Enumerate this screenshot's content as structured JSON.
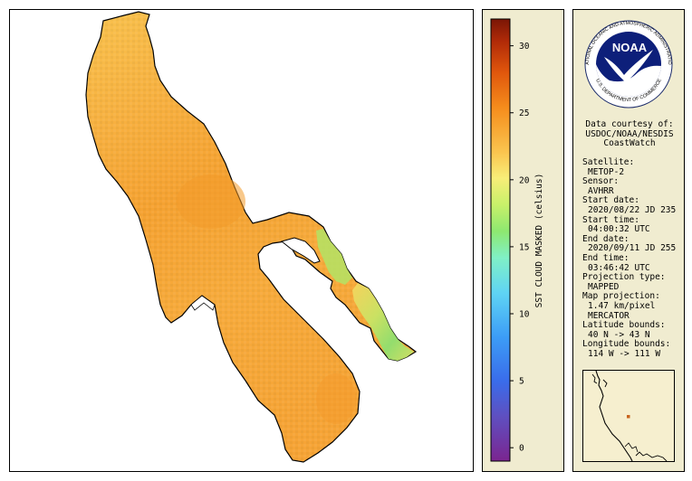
{
  "legend": {
    "title": "SST CLOUD MASKED (celsius)",
    "ticks": [
      {
        "value": 0,
        "label": "0"
      },
      {
        "value": 5,
        "label": "5"
      },
      {
        "value": 10,
        "label": "10"
      },
      {
        "value": 15,
        "label": "15"
      },
      {
        "value": 20,
        "label": "20"
      },
      {
        "value": 25,
        "label": "25"
      },
      {
        "value": 30,
        "label": "30"
      }
    ],
    "range": [
      -1,
      32
    ]
  },
  "logo": {
    "center_text": "NOAA",
    "ring_top": "NATIONAL OCEANIC AND ATMOSPHERIC ADMINISTRATION",
    "ring_bottom": "U.S. DEPARTMENT OF COMMERCE"
  },
  "courtesy": {
    "line1": "Data courtesy of:",
    "line2": "USDOC/NOAA/NESDIS",
    "line3": "CoastWatch"
  },
  "meta": {
    "satellite_label": "Satellite:",
    "satellite": "METOP-2",
    "sensor_label": "Sensor:",
    "sensor": "AVHRR",
    "start_date_label": "Start date:",
    "start_date": "2020/08/22 JD 235",
    "start_time_label": "Start time:",
    "start_time": "04:00:32 UTC",
    "end_date_label": "End date:",
    "end_date": "2020/09/11 JD 255",
    "end_time_label": "End time:",
    "end_time": "03:46:42 UTC",
    "projection_type_label": "Projection type:",
    "projection_type": "MAPPED",
    "map_projection_label": "Map projection:",
    "resolution": "1.47 km/pixel",
    "map_projection": "MERCATOR",
    "lat_bounds_label": "Latitude bounds:",
    "lat_bounds": "40 N -> 43 N",
    "lon_bounds_label": "Longitude bounds:",
    "lon_bounds": "114 W -> 111 W"
  },
  "colors": {
    "lake_main": "#f9b344",
    "lake_warm": "#f59c2c",
    "lake_cool": "#f8cc5c",
    "bay_green": "#9ee46a",
    "panel_bg": "#f0ecd0"
  }
}
